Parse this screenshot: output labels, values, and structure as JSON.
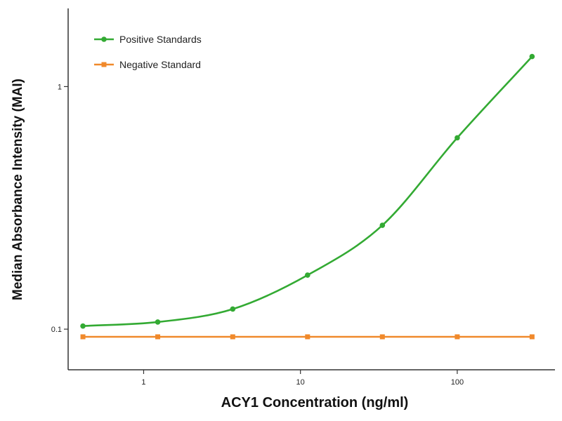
{
  "chart_data": {
    "type": "line",
    "title": "",
    "xlabel": "ACY1 Concentration (ng/ml)",
    "ylabel": "Median Absorbance Intensity (MAI)",
    "x_scale": "log",
    "y_scale": "log",
    "xlim": [
      0.33,
      420
    ],
    "ylim": [
      0.068,
      2.1
    ],
    "x_ticks": [
      {
        "value": 1,
        "label": "1"
      },
      {
        "value": 10,
        "label": "10"
      },
      {
        "value": 100,
        "label": "100"
      }
    ],
    "y_ticks": [
      {
        "value": 0.1,
        "label": "0.1"
      },
      {
        "value": 1,
        "label": "1"
      }
    ],
    "grid": false,
    "legend_position": "top-left",
    "series": [
      {
        "name": "Positive Standards",
        "color": "#33aa33",
        "marker": "circle",
        "fit": "4PL",
        "x": [
          0.41,
          1.23,
          3.7,
          11.1,
          33.3,
          100,
          300
        ],
        "y": [
          0.103,
          0.107,
          0.121,
          0.167,
          0.268,
          0.615,
          1.33
        ]
      },
      {
        "name": "Negative Standard",
        "color": "#f0892b",
        "marker": "square",
        "fit": "flat",
        "x": [
          0.41,
          1.23,
          3.7,
          11.1,
          33.3,
          100,
          300
        ],
        "y": [
          0.093,
          0.093,
          0.093,
          0.093,
          0.093,
          0.093,
          0.093
        ]
      }
    ]
  }
}
